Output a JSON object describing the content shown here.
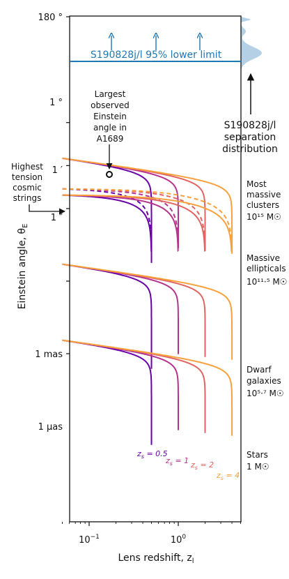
{
  "chart_data": {
    "type": "line",
    "xlabel": "Lens redshift, z_l",
    "ylabel": "Einstein angle, θ_E",
    "xscale": "log",
    "yscale": "log",
    "xlim": [
      0.05,
      5.5
    ],
    "ylim_arcsec": [
      5e-07,
      648000
    ],
    "x_ticks": [
      {
        "value": 0.1,
        "label": "10⁻¹"
      },
      {
        "value": 1,
        "label": "10⁰"
      }
    ],
    "y_ticks": [
      {
        "value_arcsec": 648000,
        "label": "180 °"
      },
      {
        "value_arcsec": 3600,
        "label": "1 °"
      },
      {
        "value_arcsec": 60,
        "label": "1 ′"
      },
      {
        "value_arcsec": 1,
        "label": "1 ″"
      },
      {
        "value_arcsec": 0.001,
        "label": "1 mas"
      },
      {
        "value_arcsec": 1e-06,
        "label": "1 μas"
      }
    ],
    "source_redshifts": [
      {
        "zs": 0.5,
        "label": "z_s = 0.5",
        "color": "#6a00a8"
      },
      {
        "zs": 1,
        "label": "z_s = 1",
        "color": "#b5338f"
      },
      {
        "zs": 2,
        "label": "z_s = 2",
        "color": "#e06461"
      },
      {
        "zs": 4,
        "label": "z_s = 4",
        "color": "#f8a13c"
      }
    ],
    "mass_classes": [
      {
        "name": "Most massive clusters",
        "mass_label": "10¹⁵ M☉",
        "theta_at_z0_arcsec": 120,
        "style": "solid"
      },
      {
        "name": "Highest tension cosmic strings",
        "theta_at_z0_arcsec": 6.5,
        "style": "dashed"
      },
      {
        "name": "Massive ellipticals",
        "mass_label": "10¹¹·⁵ M☉",
        "theta_at_z0_arcsec": 3.6,
        "style": "solid"
      },
      {
        "name": "Dwarf galaxies",
        "mass_label": "10⁵·⁷ M☉",
        "theta_at_z0_arcsec": 0.005,
        "style": "solid"
      },
      {
        "name": "Stars",
        "mass_label": "1 M☉",
        "theta_at_z0_arcsec": 3.6e-06,
        "style": "solid"
      }
    ],
    "annotations": {
      "s190828_lower_limit": {
        "label": "S190828j/l 95% lower limit",
        "value_arcsec": 8500,
        "color": "#1f77b4"
      },
      "a1689": {
        "label": "Largest observed Einstein angle in A1689",
        "x": 0.16,
        "y_arcsec": 45
      },
      "cosmic_strings": {
        "label": "Highest tension cosmic strings"
      },
      "separation_distribution": {
        "label": "S190828j/l separation distribution",
        "color": "#a6c8e0"
      }
    }
  },
  "text": {
    "ylabel": "Einstein angle, θ",
    "ylabel_sub": "E",
    "xlabel": "Lens redshift, z",
    "xlabel_sub": "l",
    "lower_limit": "S190828j/l 95% lower limit",
    "a1689": [
      "Largest",
      "observed",
      "Einstein",
      "angle in",
      "A1689"
    ],
    "strings": [
      "Highest",
      "tension",
      "cosmic",
      "strings"
    ],
    "separation": [
      "S190828j/l",
      "separation",
      "distribution"
    ],
    "clusters": [
      "Most",
      "massive",
      "clusters"
    ],
    "clusters_mass": "10¹⁵ M☉",
    "ellipticals": [
      "Massive",
      "ellipticals"
    ],
    "ellipticals_mass": "10¹¹·⁵ M☉",
    "dwarfs": [
      "Dwarf",
      "galaxies"
    ],
    "dwarfs_mass": "10⁵·⁷ M☉",
    "stars": [
      "Stars"
    ],
    "stars_mass": "1 M☉",
    "zs": [
      "z",
      "s",
      " = 0.5",
      " = 1",
      " = 2",
      " = 4"
    ]
  }
}
